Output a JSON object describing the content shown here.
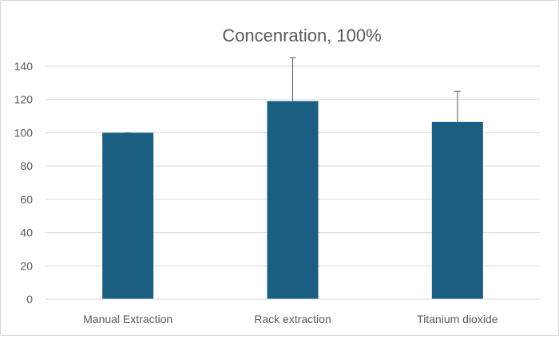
{
  "chart_data": {
    "type": "bar",
    "title": "Concenration, 100%",
    "xlabel": "",
    "ylabel": "",
    "categories": [
      "Manual Extraction",
      "Rack extraction",
      "Titanium dioxide"
    ],
    "series": [
      {
        "values": [
          100,
          119,
          106.5
        ],
        "error": [
          0,
          26,
          18.5
        ]
      }
    ],
    "ylim": [
      0,
      140
    ],
    "yticks": [
      "0",
      "20",
      "40",
      "60",
      "80",
      "100",
      "120",
      "140"
    ],
    "grid": true,
    "legend": "none",
    "colors": {
      "bar": "#1a5e82",
      "grid": "#d9d9d9",
      "axis": "#d9d9d9",
      "error": "#595959"
    }
  }
}
